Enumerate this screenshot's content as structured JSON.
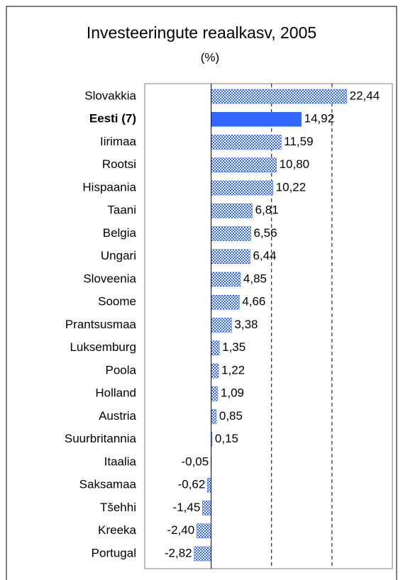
{
  "chart_data": {
    "type": "barh",
    "title": "Investeeringute reaalkasv, 2005",
    "subtitle": "(%)",
    "categories": [
      "Slovakkia",
      "Eesti (7)",
      "Iirimaa",
      "Rootsi",
      "Hispaania",
      "Taani",
      "Belgia",
      "Ungari",
      "Sloveenia",
      "Soome",
      "Prantsusmaa",
      "Luksemburg",
      "Poola",
      "Holland",
      "Austria",
      "Suurbritannia",
      "Itaalia",
      "Saksamaa",
      "Tšehhi",
      "Kreeka",
      "Portugal"
    ],
    "values": [
      22.44,
      14.92,
      11.59,
      10.8,
      10.22,
      6.81,
      6.56,
      6.44,
      4.85,
      4.66,
      3.38,
      1.35,
      1.22,
      1.09,
      0.85,
      0.15,
      -0.05,
      -0.62,
      -1.45,
      -2.4,
      -2.82
    ],
    "value_labels": [
      "22,44",
      "14,92",
      "11,59",
      "10,80",
      "10,22",
      "6,81",
      "6,56",
      "6,44",
      "4,85",
      "4,66",
      "3,38",
      "1,35",
      "1,22",
      "1,09",
      "0,85",
      "0,15",
      "-0,05",
      "-0,62",
      "-1,45",
      "-2,40",
      "-2,82"
    ],
    "color": "#3366ff",
    "highlight": 1,
    "xlim": [
      -11,
      30
    ],
    "xticks": [
      10,
      20
    ],
    "grid": true
  }
}
